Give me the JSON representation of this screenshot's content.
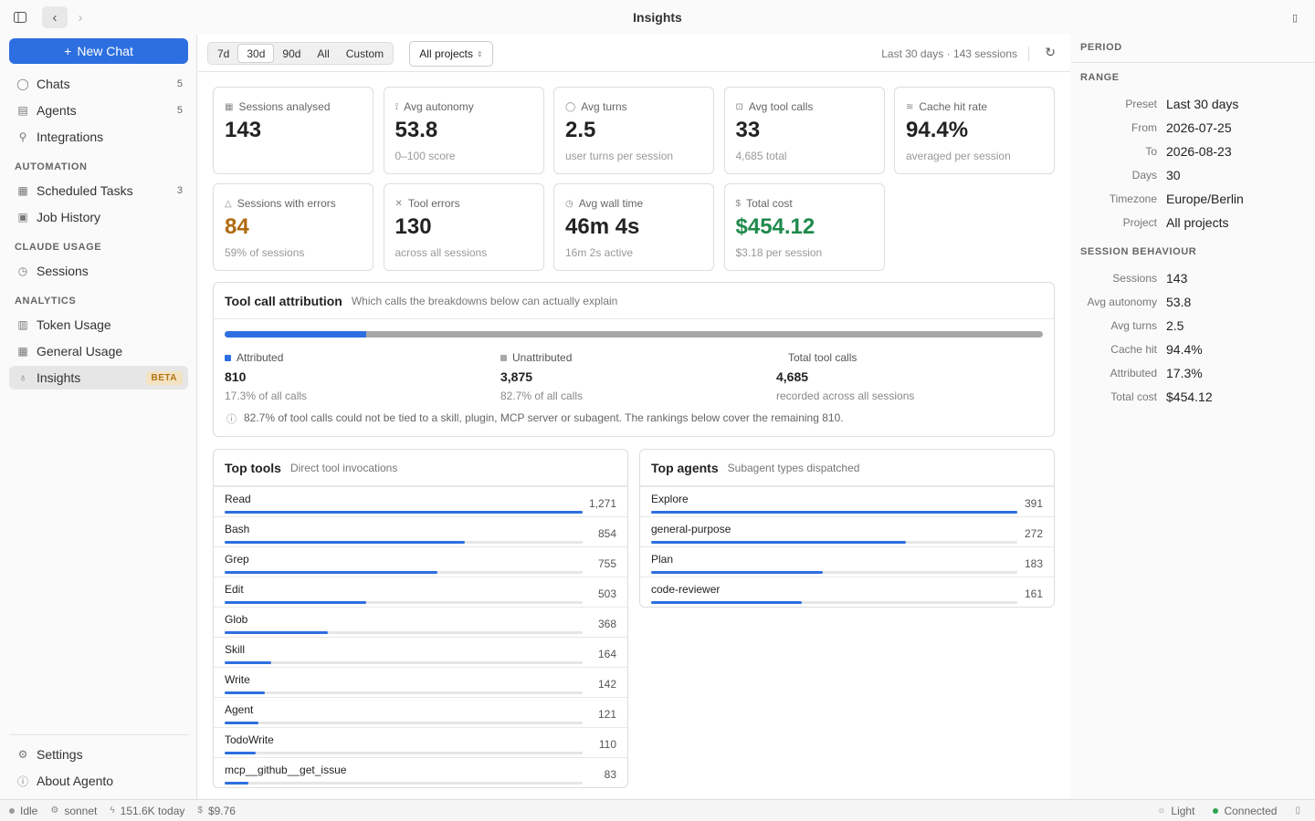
{
  "window": {
    "title": "Insights"
  },
  "sidebar": {
    "new_chat": "New Chat",
    "items": [
      {
        "label": "Chats",
        "count": "5",
        "icon": "chat-icon"
      },
      {
        "label": "Agents",
        "count": "5",
        "icon": "agents-icon"
      },
      {
        "label": "Integrations",
        "count": "",
        "icon": "plug-icon"
      }
    ],
    "automation_head": "AUTOMATION",
    "automation": [
      {
        "label": "Scheduled Tasks",
        "count": "3",
        "icon": "calendar-icon"
      },
      {
        "label": "Job History",
        "count": "",
        "icon": "history-icon"
      }
    ],
    "usage_head": "CLAUDE USAGE",
    "usage": [
      {
        "label": "Sessions",
        "icon": "clock-icon"
      }
    ],
    "analytics_head": "ANALYTICS",
    "analytics": [
      {
        "label": "Token Usage",
        "icon": "bar-chart-icon"
      },
      {
        "label": "General Usage",
        "icon": "grid-icon"
      },
      {
        "label": "Insights",
        "badge": "BETA",
        "icon": "lightbulb-icon"
      }
    ],
    "settings": "Settings",
    "about": "About Agento"
  },
  "toolbar": {
    "ranges": [
      "7d",
      "30d",
      "90d",
      "All",
      "Custom"
    ],
    "selected_range": "30d",
    "project": "All projects",
    "meta": "Last 30 days · 143 sessions"
  },
  "stats": [
    {
      "label": "Sessions analysed",
      "value": "143",
      "sub": "",
      "icon": "grid-icon"
    },
    {
      "label": "Avg autonomy",
      "value": "53.8",
      "sub": "0–100 score",
      "icon": "autonomy-icon"
    },
    {
      "label": "Avg turns",
      "value": "2.5",
      "sub": "user turns per session",
      "icon": "chat-icon"
    },
    {
      "label": "Avg tool calls",
      "value": "33",
      "sub": "4,685 total",
      "icon": "tool-icon"
    },
    {
      "label": "Cache hit rate",
      "value": "94.4%",
      "sub": "averaged per session",
      "icon": "layers-icon"
    },
    {
      "label": "Sessions with errors",
      "value": "84",
      "sub": "59% of sessions",
      "icon": "warning-icon",
      "color": "#b06a10"
    },
    {
      "label": "Tool errors",
      "value": "130",
      "sub": "across all sessions",
      "icon": "x-icon"
    },
    {
      "label": "Avg wall time",
      "value": "46m 4s",
      "sub": "16m 2s active",
      "icon": "clock-icon"
    },
    {
      "label": "Total cost",
      "value": "$454.12",
      "sub": "$3.18 per session",
      "icon": "dollar-icon",
      "color": "#1f8a4c"
    }
  ],
  "attribution": {
    "title": "Tool call attribution",
    "subtitle": "Which calls the breakdowns below can actually explain",
    "attributed_fraction": 0.173,
    "attributed": {
      "label": "Attributed",
      "value": "810",
      "sub": "17.3% of all calls"
    },
    "unattributed": {
      "label": "Unattributed",
      "value": "3,875",
      "sub": "82.7% of all calls"
    },
    "total": {
      "label": "Total tool calls",
      "value": "4,685",
      "sub": "recorded across all sessions"
    },
    "note": "82.7% of tool calls could not be tied to a skill, plugin, MCP server or subagent. The rankings below cover the remaining 810."
  },
  "top_tools": {
    "title": "Top tools",
    "subtitle": "Direct tool invocations",
    "rows": [
      {
        "name": "Read",
        "value": "1,271",
        "n": 1271
      },
      {
        "name": "Bash",
        "value": "854",
        "n": 854
      },
      {
        "name": "Grep",
        "value": "755",
        "n": 755
      },
      {
        "name": "Edit",
        "value": "503",
        "n": 503
      },
      {
        "name": "Glob",
        "value": "368",
        "n": 368
      },
      {
        "name": "Skill",
        "value": "164",
        "n": 164
      },
      {
        "name": "Write",
        "value": "142",
        "n": 142
      },
      {
        "name": "Agent",
        "value": "121",
        "n": 121
      },
      {
        "name": "TodoWrite",
        "value": "110",
        "n": 110
      },
      {
        "name": "mcp__github__get_issue",
        "value": "83",
        "n": 83
      }
    ]
  },
  "top_agents": {
    "title": "Top agents",
    "subtitle": "Subagent types dispatched",
    "rows": [
      {
        "name": "Explore",
        "value": "391",
        "n": 391
      },
      {
        "name": "general-purpose",
        "value": "272",
        "n": 272
      },
      {
        "name": "Plan",
        "value": "183",
        "n": 183
      },
      {
        "name": "code-reviewer",
        "value": "161",
        "n": 161
      }
    ]
  },
  "period": {
    "title": "PERIOD",
    "range_head": "RANGE",
    "range": [
      {
        "k": "Preset",
        "v": "Last 30 days"
      },
      {
        "k": "From",
        "v": "2026-07-25"
      },
      {
        "k": "To",
        "v": "2026-08-23"
      },
      {
        "k": "Days",
        "v": "30"
      },
      {
        "k": "Timezone",
        "v": "Europe/Berlin"
      },
      {
        "k": "Project",
        "v": "All projects"
      }
    ],
    "behaviour_head": "SESSION BEHAVIOUR",
    "behaviour": [
      {
        "k": "Sessions",
        "v": "143"
      },
      {
        "k": "Avg autonomy",
        "v": "53.8"
      },
      {
        "k": "Avg turns",
        "v": "2.5"
      },
      {
        "k": "Cache hit",
        "v": "94.4%"
      },
      {
        "k": "Attributed",
        "v": "17.3%"
      },
      {
        "k": "Total cost",
        "v": "$454.12"
      }
    ]
  },
  "statusbar": {
    "state": "Idle",
    "model": "sonnet",
    "tokens": "151.6K today",
    "cost": "$9.76",
    "theme": "Light",
    "connection": "Connected"
  },
  "colors": {
    "accent": "#2d6fe0",
    "connected": "#2ea44f"
  }
}
